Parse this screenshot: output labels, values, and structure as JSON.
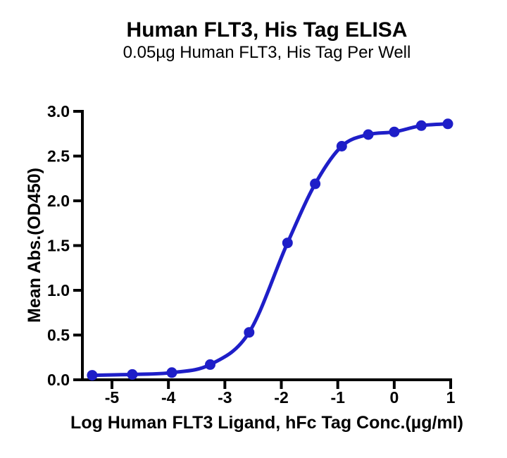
{
  "chart_data": {
    "type": "line",
    "title": "Human FLT3, His Tag ELISA",
    "subtitle": "0.05µg Human FLT3, His Tag Per Well",
    "xlabel": "Log Human FLT3 Ligand, hFc Tag Conc.(µg/ml)",
    "ylabel": "Mean Abs.(OD450)",
    "xlim": [
      -5.55,
      1.02
    ],
    "ylim": [
      0,
      3.0
    ],
    "x_ticks": [
      -5,
      -4,
      -3,
      -2,
      -1,
      0,
      1
    ],
    "x_tick_labels": [
      "-5",
      "-4",
      "-3",
      "-2",
      "-1",
      "0",
      "1"
    ],
    "y_ticks": [
      0.0,
      0.5,
      1.0,
      1.5,
      2.0,
      2.5,
      3.0
    ],
    "y_tick_labels": [
      "0.0",
      "0.5",
      "1.0",
      "1.5",
      "2.0",
      "2.5",
      "3.0"
    ],
    "grid": false,
    "legend": "none",
    "curve_color": "#1E1EC8",
    "axis_color": "#000000",
    "log_conc": [
      -5.35,
      -4.64,
      -3.94,
      -3.26,
      -2.57,
      -1.89,
      -1.4,
      -0.93,
      -0.46,
      0.0,
      0.48,
      0.95
    ],
    "mean_abs": [
      0.05,
      0.06,
      0.08,
      0.17,
      0.53,
      1.53,
      2.19,
      2.61,
      2.74,
      2.77,
      2.84,
      2.86
    ]
  }
}
